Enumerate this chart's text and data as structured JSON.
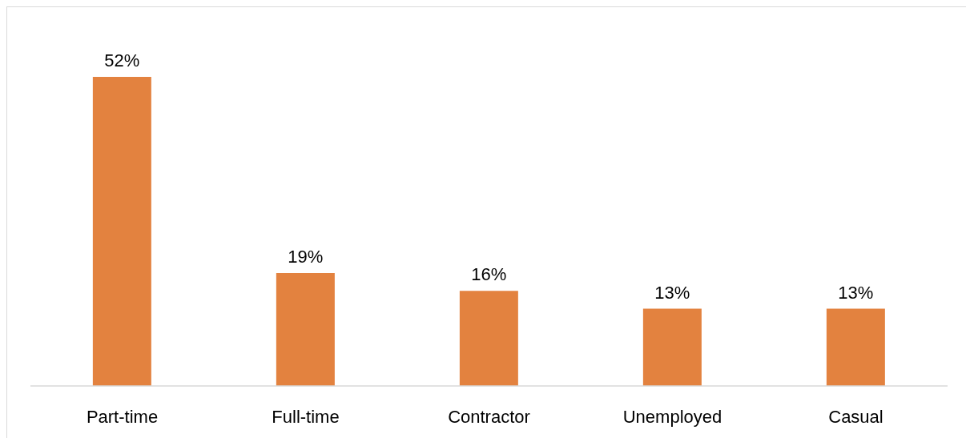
{
  "chart_data": {
    "type": "bar",
    "categories": [
      "Part-time",
      "Full-time",
      "Contractor",
      "Unemployed",
      "Casual"
    ],
    "values": [
      52,
      19,
      16,
      13,
      13
    ],
    "value_labels": [
      "52%",
      "19%",
      "16%",
      "13%",
      "13%"
    ],
    "color": "#e3823f",
    "tick_labels": "x"
  }
}
